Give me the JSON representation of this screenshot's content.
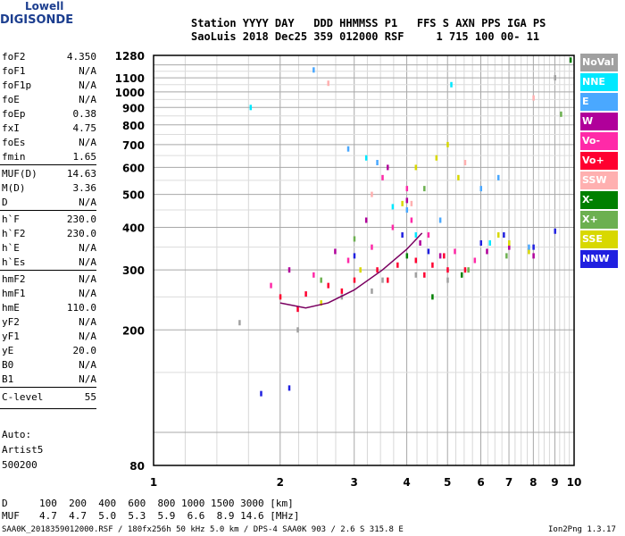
{
  "logo": {
    "line1": "Lowell",
    "line2": "DIGISONDE"
  },
  "header": {
    "line1": "Station YYYY DAY   DDD HHMMSS P1   FFS S AXN PPS IGA PS",
    "line2": "SaoLuis 2018 Dec25 359 012000 RSF     1 715 100 00- 11"
  },
  "params_group1": [
    {
      "name": "foF2",
      "value": "4.350"
    },
    {
      "name": "foF1",
      "value": "N/A"
    },
    {
      "name": "foF1p",
      "value": "N/A"
    },
    {
      "name": "foE",
      "value": "N/A"
    },
    {
      "name": "foEp",
      "value": "0.38"
    },
    {
      "name": "fxI",
      "value": "4.75"
    },
    {
      "name": "foEs",
      "value": "N/A"
    },
    {
      "name": "fmin",
      "value": "1.65"
    }
  ],
  "params_group2": [
    {
      "name": "MUF(D)",
      "value": "14.63"
    },
    {
      "name": "M(D)",
      "value": "3.36"
    },
    {
      "name": "D",
      "value": "N/A"
    }
  ],
  "params_group3": [
    {
      "name": "h`F",
      "value": "230.0"
    },
    {
      "name": "h`F2",
      "value": "230.0"
    },
    {
      "name": "h`E",
      "value": "N/A"
    },
    {
      "name": "h`Es",
      "value": "N/A"
    }
  ],
  "params_group4": [
    {
      "name": "hmF2",
      "value": "N/A"
    },
    {
      "name": "hmF1",
      "value": "N/A"
    },
    {
      "name": "hmE",
      "value": "110.0"
    },
    {
      "name": "yF2",
      "value": "N/A"
    },
    {
      "name": "yF1",
      "value": "N/A"
    },
    {
      "name": "yE",
      "value": "20.0"
    },
    {
      "name": "B0",
      "value": "N/A"
    },
    {
      "name": "B1",
      "value": "N/A"
    }
  ],
  "clevel": {
    "name": "C-level",
    "value": "55"
  },
  "auto": {
    "line1": "Auto:",
    "line2": "Artist5",
    "line3": "500200"
  },
  "legend": [
    {
      "label": "NoVal",
      "bg": "#a0a0a0",
      "fg": "#ffffff"
    },
    {
      "label": "NNE",
      "bg": "#00e8ff",
      "fg": "#ffffff"
    },
    {
      "label": "E",
      "bg": "#4aa8ff",
      "fg": "#ffffff"
    },
    {
      "label": "W",
      "bg": "#b0009a",
      "fg": "#ffffff"
    },
    {
      "label": "Vo-",
      "bg": "#ff2aa8",
      "fg": "#ffffff"
    },
    {
      "label": "Vo+",
      "bg": "#ff0030",
      "fg": "#ffffff"
    },
    {
      "label": "SSW",
      "bg": "#ffb0b0",
      "fg": "#ffffff"
    },
    {
      "label": "X-",
      "bg": "#008000",
      "fg": "#ffffff"
    },
    {
      "label": "X+",
      "bg": "#6cb050",
      "fg": "#ffffff"
    },
    {
      "label": "SSE",
      "bg": "#d8d800",
      "fg": "#ffffff"
    },
    {
      "label": "NNW",
      "bg": "#2020e0",
      "fg": "#ffffff"
    }
  ],
  "mufd_table": {
    "d_label": "D",
    "d_values": "100  200  400  600  800 1000 1500 3000 [km]",
    "muf_label": "MUF",
    "muf_values": "4.7  4.7  5.0  5.3  5.9  6.6  8.9 14.6 [MHz]"
  },
  "footer": {
    "left": "SAA0K_2018359012000.RSF / 180fx256h 50 kHz 5.0 km / DPS-4 SAA0K 903 / 2.6 S 315.8 E",
    "right": "Ion2Png 1.3.17"
  },
  "chart_data": {
    "type": "scatter",
    "title": "",
    "xlabel": "",
    "ylabel": "",
    "x_scale": "log",
    "y_scale": "log",
    "xlim": [
      1,
      10
    ],
    "ylim": [
      80,
      1280
    ],
    "x_ticks": [
      1,
      2,
      3,
      4,
      5,
      6,
      7,
      8,
      9,
      10
    ],
    "y_ticks": [
      80,
      200,
      300,
      400,
      500,
      600,
      700,
      800,
      900,
      1000,
      1100,
      1280
    ],
    "grid": true,
    "legend_placement": "right",
    "series": [
      {
        "name": "Vo+",
        "color": "#ff0030",
        "points": [
          [
            2.0,
            250
          ],
          [
            2.3,
            255
          ],
          [
            2.6,
            270
          ],
          [
            3.0,
            280
          ],
          [
            3.4,
            300
          ],
          [
            3.8,
            310
          ],
          [
            4.2,
            320
          ],
          [
            4.6,
            310
          ],
          [
            5.0,
            300
          ],
          [
            5.5,
            300
          ],
          [
            2.2,
            230
          ],
          [
            2.8,
            260
          ],
          [
            3.6,
            280
          ],
          [
            4.4,
            290
          ],
          [
            4.9,
            330
          ]
        ]
      },
      {
        "name": "Vo-",
        "color": "#ff2aa8",
        "points": [
          [
            1.9,
            270
          ],
          [
            2.4,
            290
          ],
          [
            2.9,
            320
          ],
          [
            3.3,
            350
          ],
          [
            3.7,
            400
          ],
          [
            4.1,
            420
          ],
          [
            4.5,
            380
          ],
          [
            5.2,
            340
          ],
          [
            5.8,
            320
          ],
          [
            3.5,
            560
          ],
          [
            4.0,
            520
          ]
        ]
      },
      {
        "name": "W",
        "color": "#b0009a",
        "points": [
          [
            2.1,
            300
          ],
          [
            2.7,
            340
          ],
          [
            3.2,
            420
          ],
          [
            3.6,
            600
          ],
          [
            4.0,
            480
          ],
          [
            4.3,
            360
          ],
          [
            4.8,
            330
          ],
          [
            6.2,
            340
          ],
          [
            7.0,
            350
          ],
          [
            8.0,
            330
          ]
        ]
      },
      {
        "name": "SSE",
        "color": "#d8d800",
        "points": [
          [
            2.5,
            240
          ],
          [
            3.1,
            300
          ],
          [
            3.9,
            470
          ],
          [
            4.2,
            600
          ],
          [
            4.7,
            640
          ],
          [
            5.0,
            700
          ],
          [
            5.3,
            560
          ],
          [
            6.6,
            380
          ],
          [
            7.0,
            360
          ],
          [
            7.8,
            340
          ]
        ]
      },
      {
        "name": "NNW",
        "color": "#2020e0",
        "points": [
          [
            1.8,
            130
          ],
          [
            2.1,
            135
          ],
          [
            3.0,
            330
          ],
          [
            3.9,
            380
          ],
          [
            4.5,
            340
          ],
          [
            6.0,
            360
          ],
          [
            6.8,
            380
          ],
          [
            8.0,
            350
          ],
          [
            9.0,
            390
          ]
        ]
      },
      {
        "name": "E",
        "color": "#4aa8ff",
        "points": [
          [
            2.4,
            1160
          ],
          [
            2.9,
            680
          ],
          [
            3.4,
            620
          ],
          [
            4.0,
            450
          ],
          [
            4.8,
            420
          ],
          [
            6.0,
            520
          ],
          [
            6.6,
            560
          ],
          [
            7.8,
            350
          ]
        ]
      },
      {
        "name": "NNE",
        "color": "#00e8ff",
        "points": [
          [
            1.7,
            900
          ],
          [
            3.2,
            640
          ],
          [
            3.7,
            460
          ],
          [
            4.2,
            380
          ],
          [
            5.1,
            1050
          ],
          [
            6.3,
            360
          ]
        ]
      },
      {
        "name": "X+",
        "color": "#6cb050",
        "points": [
          [
            2.5,
            280
          ],
          [
            3.0,
            370
          ],
          [
            4.4,
            520
          ],
          [
            5.6,
            300
          ],
          [
            6.9,
            330
          ],
          [
            9.3,
            860
          ]
        ]
      },
      {
        "name": "X-",
        "color": "#008000",
        "points": [
          [
            4.0,
            330
          ],
          [
            4.6,
            250
          ],
          [
            5.4,
            290
          ],
          [
            9.8,
            1240
          ]
        ]
      },
      {
        "name": "SSW",
        "color": "#ffb0b0",
        "points": [
          [
            2.6,
            1060
          ],
          [
            3.3,
            500
          ],
          [
            4.1,
            470
          ],
          [
            5.5,
            620
          ],
          [
            8.0,
            960
          ]
        ]
      },
      {
        "name": "NoVal",
        "color": "#a0a0a0",
        "points": [
          [
            1.6,
            210
          ],
          [
            2.2,
            200
          ],
          [
            2.8,
            250
          ],
          [
            3.3,
            260
          ],
          [
            3.5,
            280
          ],
          [
            4.2,
            290
          ],
          [
            5.0,
            280
          ],
          [
            9.0,
            1100
          ]
        ]
      }
    ],
    "trace": {
      "name": "F-trace",
      "color": "#7a0060",
      "x": [
        2.0,
        2.3,
        2.6,
        3.0,
        3.5,
        4.0,
        4.35
      ],
      "y": [
        240,
        232,
        240,
        262,
        300,
        345,
        385
      ]
    }
  }
}
